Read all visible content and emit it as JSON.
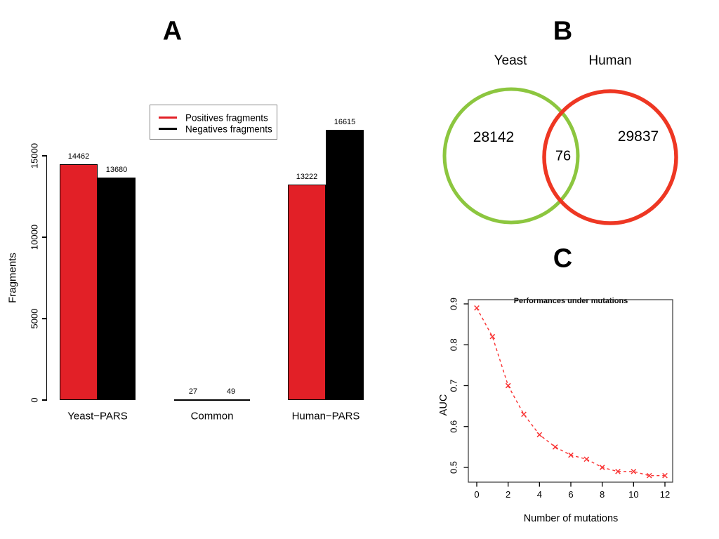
{
  "panels": {
    "a": {
      "letter": "A",
      "ylabel": "Fragments",
      "yticks": [
        0,
        5000,
        10000,
        15000
      ],
      "legend": [
        {
          "label": "Positives fragments",
          "color": "#E22027"
        },
        {
          "label": "Negatives fragments",
          "color": "#000000"
        }
      ],
      "groups": [
        {
          "label": "Yeast−PARS",
          "positives": 14462,
          "negatives": 13680
        },
        {
          "label": "Common",
          "positives": 27,
          "negatives": 49
        },
        {
          "label": "Human−PARS",
          "positives": 13222,
          "negatives": 16615
        }
      ],
      "colors": {
        "positives": "#E22027",
        "negatives": "#000000"
      }
    },
    "b": {
      "letter": "B",
      "left_set": {
        "label": "Yeast",
        "value": "28142",
        "color": "#8CC63F"
      },
      "right_set": {
        "label": "Human",
        "value": "29837",
        "color": "#EE3723"
      },
      "intersection": "76"
    },
    "c": {
      "letter": "C",
      "title": "Performances under mutations",
      "xlabel": "Number of mutations",
      "ylabel": "AUC",
      "xticks": [
        0,
        2,
        4,
        6,
        8,
        10,
        12
      ],
      "yticks": [
        0.5,
        0.6,
        0.7,
        0.8,
        0.9
      ],
      "x": [
        0,
        1,
        2,
        3,
        4,
        5,
        6,
        7,
        8,
        9,
        10,
        11,
        12
      ],
      "auc": [
        0.89,
        0.82,
        0.7,
        0.63,
        0.58,
        0.55,
        0.53,
        0.52,
        0.5,
        0.49,
        0.49,
        0.48,
        0.48
      ],
      "color": "#F93232"
    }
  },
  "chart_data": [
    {
      "type": "bar",
      "panel": "A",
      "categories": [
        "Yeast−PARS",
        "Common",
        "Human−PARS"
      ],
      "series": [
        {
          "name": "Positives fragments",
          "values": [
            14462,
            27,
            13222
          ],
          "color": "#E22027"
        },
        {
          "name": "Negatives fragments",
          "values": [
            13680,
            49,
            16615
          ],
          "color": "#000000"
        }
      ],
      "ylabel": "Fragments",
      "xlabel": "",
      "ylim": [
        0,
        15000
      ],
      "yticks": [
        0,
        5000,
        10000,
        15000
      ],
      "bar_value_labels": true,
      "legend_position": "top-center",
      "grid": false
    },
    {
      "type": "venn",
      "panel": "B",
      "sets": [
        {
          "label": "Yeast",
          "unique_value": 28142,
          "color": "#8CC63F"
        },
        {
          "label": "Human",
          "unique_value": 29837,
          "color": "#EE3723"
        }
      ],
      "intersection_value": 76
    },
    {
      "type": "line",
      "panel": "C",
      "title": "Performances under mutations",
      "xlabel": "Number of mutations",
      "ylabel": "AUC",
      "x": [
        0,
        1,
        2,
        3,
        4,
        5,
        6,
        7,
        8,
        9,
        10,
        11,
        12
      ],
      "series": [
        {
          "name": "AUC",
          "values": [
            0.89,
            0.82,
            0.7,
            0.63,
            0.58,
            0.55,
            0.53,
            0.52,
            0.5,
            0.49,
            0.49,
            0.48,
            0.48
          ]
        }
      ],
      "xlim": [
        0,
        12
      ],
      "ylim": [
        0.47,
        0.9
      ],
      "xticks": [
        0,
        2,
        4,
        6,
        8,
        10,
        12
      ],
      "yticks": [
        0.5,
        0.6,
        0.7,
        0.8,
        0.9
      ],
      "line_style": "dashed",
      "marker": "x",
      "color": "#F93232",
      "grid": false
    }
  ]
}
